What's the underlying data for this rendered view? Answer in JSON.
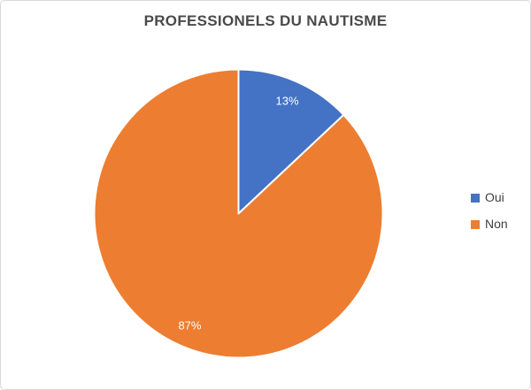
{
  "window": {
    "background": "#ffffff",
    "border_color": "#d9d9d9"
  },
  "chart_data": {
    "type": "pie",
    "title": "PROFESSIONELS DU NAUTISME",
    "title_color": "#4a4a4a",
    "categories": [
      "Oui",
      "Non"
    ],
    "values": [
      13,
      87
    ],
    "slices": [
      {
        "label": "Oui",
        "value": 13,
        "display_label": "13%",
        "color": "#4472c4"
      },
      {
        "label": "Non",
        "value": 87,
        "display_label": "87%",
        "color": "#ed7d31"
      }
    ],
    "start_angle_deg": 0,
    "direction": "clockwise",
    "slice_label_color": "#ffffff",
    "slice_separator_color": "#ffffff",
    "legend_position": "right",
    "legend_text_color": "#404040",
    "grid": false,
    "background": "#ffffff"
  }
}
